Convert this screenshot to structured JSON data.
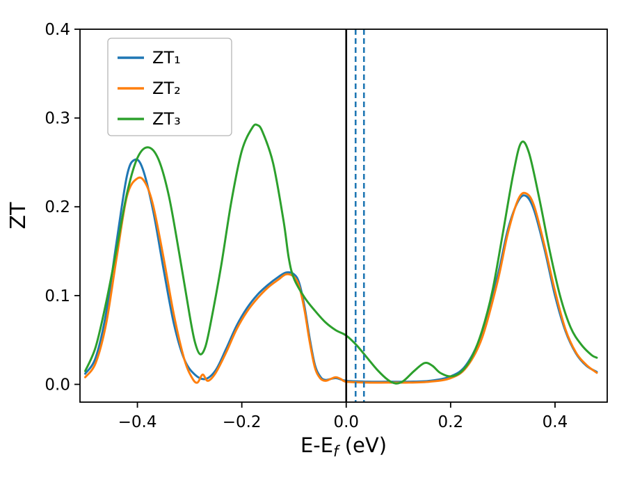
{
  "chart_data": {
    "type": "line",
    "title": "",
    "xlabel": {
      "main": "E-E",
      "sub": "f",
      "suffix": " (eV)"
    },
    "ylabel": "ZT",
    "xlim": [
      -0.51,
      0.5
    ],
    "ylim": [
      -0.02,
      0.4
    ],
    "xticks": [
      -0.4,
      -0.2,
      0.0,
      0.2,
      0.4
    ],
    "xtick_labels": [
      "−0.4",
      "−0.2",
      "0.0",
      "0.2",
      "0.4"
    ],
    "yticks": [
      0.0,
      0.1,
      0.2,
      0.3,
      0.4
    ],
    "ytick_labels": [
      "0.0",
      "0.1",
      "0.2",
      "0.3",
      "0.4"
    ],
    "grid": false,
    "legend": {
      "position": "upper-left",
      "frame": true
    },
    "series": [
      {
        "name": "ZT₁",
        "color": "#1f77b4",
        "points": [
          [
            -0.5,
            0.012
          ],
          [
            -0.48,
            0.03
          ],
          [
            -0.46,
            0.08
          ],
          [
            -0.44,
            0.16
          ],
          [
            -0.42,
            0.235
          ],
          [
            -0.405,
            0.253
          ],
          [
            -0.39,
            0.243
          ],
          [
            -0.37,
            0.196
          ],
          [
            -0.35,
            0.13
          ],
          [
            -0.33,
            0.068
          ],
          [
            -0.31,
            0.028
          ],
          [
            -0.29,
            0.011
          ],
          [
            -0.27,
            0.006
          ],
          [
            -0.25,
            0.016
          ],
          [
            -0.23,
            0.04
          ],
          [
            -0.21,
            0.066
          ],
          [
            -0.19,
            0.086
          ],
          [
            -0.17,
            0.101
          ],
          [
            -0.15,
            0.112
          ],
          [
            -0.13,
            0.121
          ],
          [
            -0.115,
            0.126
          ],
          [
            -0.1,
            0.124
          ],
          [
            -0.09,
            0.114
          ],
          [
            -0.08,
            0.088
          ],
          [
            -0.07,
            0.052
          ],
          [
            -0.06,
            0.022
          ],
          [
            -0.05,
            0.009
          ],
          [
            -0.04,
            0.005
          ],
          [
            -0.02,
            0.007
          ],
          [
            0.0,
            0.004
          ],
          [
            0.04,
            0.003
          ],
          [
            0.08,
            0.003
          ],
          [
            0.12,
            0.003
          ],
          [
            0.16,
            0.004
          ],
          [
            0.2,
            0.009
          ],
          [
            0.23,
            0.022
          ],
          [
            0.26,
            0.058
          ],
          [
            0.29,
            0.122
          ],
          [
            0.31,
            0.175
          ],
          [
            0.33,
            0.207
          ],
          [
            0.345,
            0.212
          ],
          [
            0.36,
            0.196
          ],
          [
            0.38,
            0.152
          ],
          [
            0.4,
            0.1
          ],
          [
            0.42,
            0.06
          ],
          [
            0.44,
            0.035
          ],
          [
            0.46,
            0.021
          ],
          [
            0.48,
            0.014
          ]
        ]
      },
      {
        "name": "ZT₂",
        "color": "#ff7f0e",
        "points": [
          [
            -0.5,
            0.008
          ],
          [
            -0.48,
            0.024
          ],
          [
            -0.46,
            0.068
          ],
          [
            -0.44,
            0.142
          ],
          [
            -0.42,
            0.212
          ],
          [
            -0.4,
            0.232
          ],
          [
            -0.385,
            0.227
          ],
          [
            -0.37,
            0.202
          ],
          [
            -0.35,
            0.143
          ],
          [
            -0.33,
            0.078
          ],
          [
            -0.31,
            0.028
          ],
          [
            -0.295,
            0.007
          ],
          [
            -0.285,
            0.002
          ],
          [
            -0.275,
            0.011
          ],
          [
            -0.265,
            0.004
          ],
          [
            -0.25,
            0.013
          ],
          [
            -0.23,
            0.036
          ],
          [
            -0.21,
            0.062
          ],
          [
            -0.19,
            0.082
          ],
          [
            -0.17,
            0.097
          ],
          [
            -0.15,
            0.109
          ],
          [
            -0.13,
            0.118
          ],
          [
            -0.115,
            0.124
          ],
          [
            -0.1,
            0.121
          ],
          [
            -0.09,
            0.11
          ],
          [
            -0.08,
            0.084
          ],
          [
            -0.07,
            0.048
          ],
          [
            -0.06,
            0.019
          ],
          [
            -0.05,
            0.007
          ],
          [
            -0.04,
            0.004
          ],
          [
            -0.03,
            0.006
          ],
          [
            -0.02,
            0.008
          ],
          [
            -0.01,
            0.006
          ],
          [
            0.0,
            0.003
          ],
          [
            0.04,
            0.002
          ],
          [
            0.08,
            0.002
          ],
          [
            0.12,
            0.002
          ],
          [
            0.16,
            0.003
          ],
          [
            0.2,
            0.007
          ],
          [
            0.23,
            0.019
          ],
          [
            0.26,
            0.052
          ],
          [
            0.29,
            0.116
          ],
          [
            0.31,
            0.171
          ],
          [
            0.33,
            0.209
          ],
          [
            0.345,
            0.215
          ],
          [
            0.36,
            0.201
          ],
          [
            0.38,
            0.156
          ],
          [
            0.4,
            0.105
          ],
          [
            0.42,
            0.062
          ],
          [
            0.44,
            0.036
          ],
          [
            0.46,
            0.022
          ],
          [
            0.48,
            0.013
          ]
        ]
      },
      {
        "name": "ZT₃",
        "color": "#2ca02c",
        "points": [
          [
            -0.5,
            0.015
          ],
          [
            -0.48,
            0.042
          ],
          [
            -0.46,
            0.092
          ],
          [
            -0.44,
            0.152
          ],
          [
            -0.42,
            0.215
          ],
          [
            -0.4,
            0.255
          ],
          [
            -0.38,
            0.267
          ],
          [
            -0.36,
            0.254
          ],
          [
            -0.34,
            0.213
          ],
          [
            -0.32,
            0.148
          ],
          [
            -0.3,
            0.078
          ],
          [
            -0.29,
            0.048
          ],
          [
            -0.28,
            0.034
          ],
          [
            -0.27,
            0.042
          ],
          [
            -0.26,
            0.068
          ],
          [
            -0.24,
            0.132
          ],
          [
            -0.22,
            0.206
          ],
          [
            -0.2,
            0.263
          ],
          [
            -0.18,
            0.289
          ],
          [
            -0.17,
            0.292
          ],
          [
            -0.16,
            0.284
          ],
          [
            -0.14,
            0.249
          ],
          [
            -0.12,
            0.184
          ],
          [
            -0.11,
            0.142
          ],
          [
            -0.1,
            0.119
          ],
          [
            -0.08,
            0.098
          ],
          [
            -0.06,
            0.083
          ],
          [
            -0.04,
            0.07
          ],
          [
            -0.02,
            0.061
          ],
          [
            0.0,
            0.055
          ],
          [
            0.02,
            0.044
          ],
          [
            0.04,
            0.03
          ],
          [
            0.06,
            0.016
          ],
          [
            0.08,
            0.005
          ],
          [
            0.095,
            0.001
          ],
          [
            0.11,
            0.004
          ],
          [
            0.13,
            0.015
          ],
          [
            0.15,
            0.024
          ],
          [
            0.165,
            0.021
          ],
          [
            0.18,
            0.013
          ],
          [
            0.2,
            0.009
          ],
          [
            0.22,
            0.014
          ],
          [
            0.24,
            0.03
          ],
          [
            0.26,
            0.06
          ],
          [
            0.28,
            0.105
          ],
          [
            0.3,
            0.17
          ],
          [
            0.32,
            0.237
          ],
          [
            0.335,
            0.272
          ],
          [
            0.35,
            0.261
          ],
          [
            0.37,
            0.209
          ],
          [
            0.39,
            0.15
          ],
          [
            0.41,
            0.099
          ],
          [
            0.43,
            0.064
          ],
          [
            0.45,
            0.045
          ],
          [
            0.47,
            0.033
          ],
          [
            0.48,
            0.03
          ]
        ]
      }
    ],
    "vlines": [
      {
        "x": 0.0,
        "color": "#000000",
        "style": "solid"
      },
      {
        "x": 0.018,
        "color": "#1f77b4",
        "style": "dashed"
      },
      {
        "x": 0.034,
        "color": "#1f77b4",
        "style": "dashed"
      }
    ],
    "colors": {
      "spine": "#000000",
      "tick_label": "#000000",
      "legend_edge": "#b5b5b5",
      "background": "#ffffff"
    }
  }
}
